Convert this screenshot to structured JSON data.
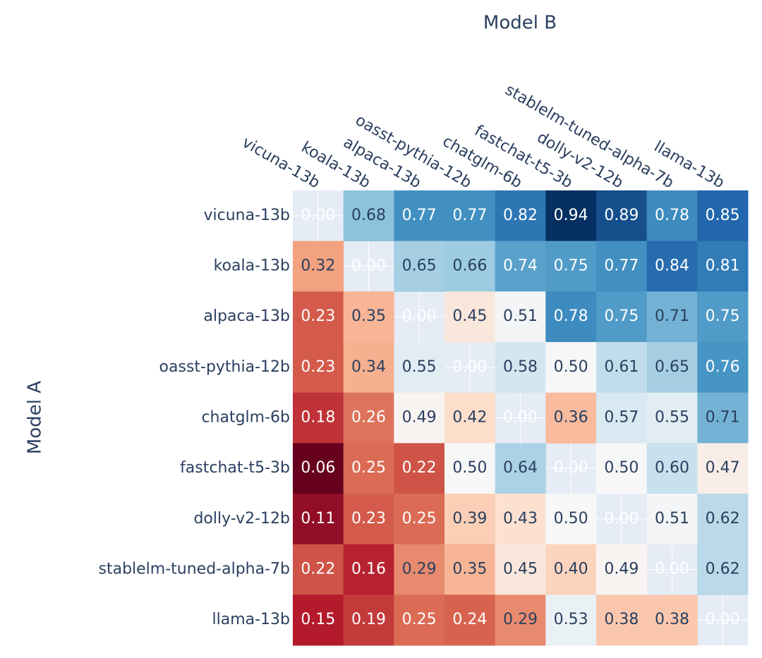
{
  "chart_data": {
    "type": "heatmap",
    "x_title": "Model B",
    "y_title": "Model A",
    "x": [
      "vicuna-13b",
      "koala-13b",
      "alpaca-13b",
      "oasst-pythia-12b",
      "chatglm-6b",
      "fastchat-t5-3b",
      "dolly-v2-12b",
      "stablelm-tuned-alpha-7b",
      "llama-13b"
    ],
    "y": [
      "vicuna-13b",
      "koala-13b",
      "alpaca-13b",
      "oasst-pythia-12b",
      "chatglm-6b",
      "fastchat-t5-3b",
      "dolly-v2-12b",
      "stablelm-tuned-alpha-7b",
      "llama-13b"
    ],
    "values": [
      [
        null,
        0.68,
        0.77,
        0.77,
        0.82,
        0.94,
        0.89,
        0.78,
        0.85
      ],
      [
        0.32,
        null,
        0.65,
        0.66,
        0.74,
        0.75,
        0.77,
        0.84,
        0.81
      ],
      [
        0.23,
        0.35,
        null,
        0.45,
        0.51,
        0.78,
        0.75,
        0.71,
        0.75
      ],
      [
        0.23,
        0.34,
        0.55,
        null,
        0.58,
        0.5,
        0.61,
        0.65,
        0.76
      ],
      [
        0.18,
        0.26,
        0.49,
        0.42,
        null,
        0.36,
        0.57,
        0.55,
        0.71
      ],
      [
        0.06,
        0.25,
        0.22,
        0.5,
        0.64,
        null,
        0.5,
        0.6,
        0.47
      ],
      [
        0.11,
        0.23,
        0.25,
        0.39,
        0.43,
        0.5,
        null,
        0.51,
        0.62
      ],
      [
        0.22,
        0.16,
        0.29,
        0.35,
        0.45,
        0.4,
        0.49,
        null,
        0.62
      ],
      [
        0.15,
        0.19,
        0.25,
        0.24,
        0.29,
        0.53,
        0.38,
        0.38,
        null
      ]
    ],
    "value_labels": [
      [
        "0.00",
        "0.68",
        "0.77",
        "0.77",
        "0.82",
        "0.94",
        "0.89",
        "0.78",
        "0.85"
      ],
      [
        "0.32",
        "0.00",
        "0.65",
        "0.66",
        "0.74",
        "0.75",
        "0.77",
        "0.84",
        "0.81"
      ],
      [
        "0.23",
        "0.35",
        "0.00",
        "0.45",
        "0.51",
        "0.78",
        "0.75",
        "0.71",
        "0.75"
      ],
      [
        "0.23",
        "0.34",
        "0.55",
        "0.00",
        "0.58",
        "0.50",
        "0.61",
        "0.65",
        "0.76"
      ],
      [
        "0.18",
        "0.26",
        "0.49",
        "0.42",
        "0.00",
        "0.36",
        "0.57",
        "0.55",
        "0.71"
      ],
      [
        "0.06",
        "0.25",
        "0.22",
        "0.50",
        "0.64",
        "0.00",
        "0.50",
        "0.60",
        "0.47"
      ],
      [
        "0.11",
        "0.23",
        "0.25",
        "0.39",
        "0.43",
        "0.50",
        "0.00",
        "0.51",
        "0.62"
      ],
      [
        "0.22",
        "0.16",
        "0.29",
        "0.35",
        "0.45",
        "0.40",
        "0.49",
        "0.00",
        "0.62"
      ],
      [
        "0.15",
        "0.19",
        "0.25",
        "0.24",
        "0.29",
        "0.53",
        "0.38",
        "0.38",
        "0.00"
      ]
    ],
    "colorscale": [
      "#67001f",
      "#b2182b",
      "#d6604d",
      "#f4a582",
      "#fddbc7",
      "#f7f7f7",
      "#d1e5f0",
      "#92c5de",
      "#4393c3",
      "#2166ac",
      "#053061"
    ]
  }
}
